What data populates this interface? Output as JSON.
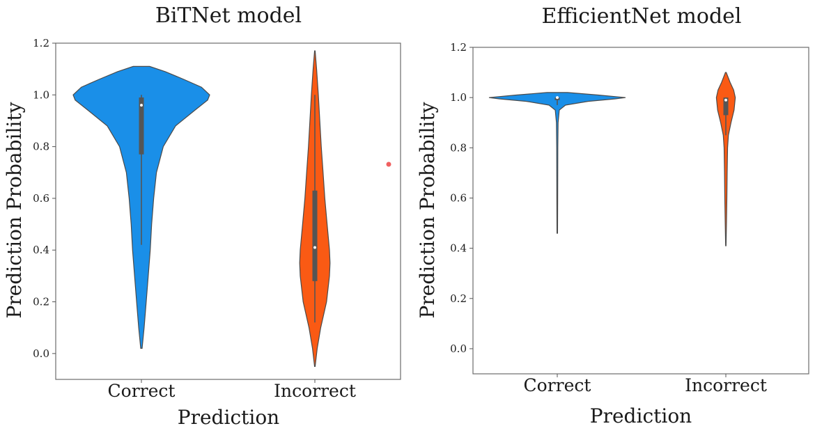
{
  "chart_data": [
    {
      "type": "violin",
      "title": "BiTNet model",
      "xlabel": "Prediction",
      "ylabel": "Prediction Probability",
      "categories": [
        "Correct",
        "Incorrect"
      ],
      "ylim": [
        -0.1,
        1.2
      ],
      "yticks": [
        "0.0",
        "0.2",
        "0.4",
        "0.6",
        "0.8",
        "1.0",
        "1.2"
      ],
      "grid": false,
      "colors": [
        "#1a8fe8",
        "#fa5a14"
      ],
      "series": [
        {
          "category": "Correct",
          "min": 0.02,
          "max": 1.11,
          "q1": 0.77,
          "median": 0.96,
          "q3": 0.99,
          "whisker_low": 0.42,
          "whisker_high": 1.0,
          "density": [
            [
              0.02,
              0.01
            ],
            [
              0.1,
              0.04
            ],
            [
              0.2,
              0.07
            ],
            [
              0.3,
              0.1
            ],
            [
              0.4,
              0.13
            ],
            [
              0.5,
              0.15
            ],
            [
              0.6,
              0.18
            ],
            [
              0.7,
              0.22
            ],
            [
              0.8,
              0.32
            ],
            [
              0.88,
              0.5
            ],
            [
              0.94,
              0.78
            ],
            [
              0.98,
              0.97
            ],
            [
              1.0,
              1.0
            ],
            [
              1.03,
              0.88
            ],
            [
              1.06,
              0.62
            ],
            [
              1.09,
              0.35
            ],
            [
              1.11,
              0.12
            ]
          ]
        },
        {
          "category": "Incorrect",
          "min": -0.05,
          "max": 1.17,
          "q1": 0.28,
          "median": 0.41,
          "q3": 0.63,
          "whisker_low": 0.12,
          "whisker_high": 1.0,
          "density": [
            [
              -0.05,
              0.01
            ],
            [
              0.02,
              0.08
            ],
            [
              0.1,
              0.2
            ],
            [
              0.2,
              0.4
            ],
            [
              0.3,
              0.5
            ],
            [
              0.35,
              0.52
            ],
            [
              0.4,
              0.5
            ],
            [
              0.5,
              0.42
            ],
            [
              0.6,
              0.34
            ],
            [
              0.7,
              0.28
            ],
            [
              0.8,
              0.22
            ],
            [
              0.9,
              0.17
            ],
            [
              1.0,
              0.12
            ],
            [
              1.1,
              0.06
            ],
            [
              1.17,
              0.01
            ]
          ]
        }
      ]
    },
    {
      "type": "violin",
      "title": "EfficientNet model",
      "xlabel": "Prediction",
      "ylabel": "Prediction Probability",
      "categories": [
        "Correct",
        "Incorrect"
      ],
      "ylim": [
        -0.1,
        1.2
      ],
      "yticks": [
        "0.0",
        "0.2",
        "0.4",
        "0.6",
        "0.8",
        "1.0",
        "1.2"
      ],
      "grid": false,
      "colors": [
        "#1a8fe8",
        "#fa5a14"
      ],
      "series": [
        {
          "category": "Correct",
          "min": 0.46,
          "max": 1.02,
          "q1": 0.99,
          "median": 1.0,
          "q3": 1.0,
          "whisker_low": 0.97,
          "whisker_high": 1.0,
          "density": [
            [
              0.46,
              0.004
            ],
            [
              0.6,
              0.006
            ],
            [
              0.8,
              0.008
            ],
            [
              0.9,
              0.012
            ],
            [
              0.95,
              0.03
            ],
            [
              0.97,
              0.12
            ],
            [
              0.985,
              0.45
            ],
            [
              0.995,
              0.85
            ],
            [
              1.0,
              1.0
            ],
            [
              1.01,
              0.6
            ],
            [
              1.02,
              0.15
            ]
          ]
        },
        {
          "category": "Incorrect",
          "min": 0.41,
          "max": 1.1,
          "q1": 0.93,
          "median": 0.99,
          "q3": 1.0,
          "whisker_low": 0.85,
          "whisker_high": 1.0,
          "density": [
            [
              0.41,
              0.005
            ],
            [
              0.5,
              0.015
            ],
            [
              0.6,
              0.025
            ],
            [
              0.7,
              0.03
            ],
            [
              0.8,
              0.04
            ],
            [
              0.85,
              0.06
            ],
            [
              0.9,
              0.12
            ],
            [
              0.95,
              0.19
            ],
            [
              1.0,
              0.22
            ],
            [
              1.03,
              0.18
            ],
            [
              1.06,
              0.1
            ],
            [
              1.1,
              0.01
            ]
          ]
        }
      ]
    }
  ]
}
